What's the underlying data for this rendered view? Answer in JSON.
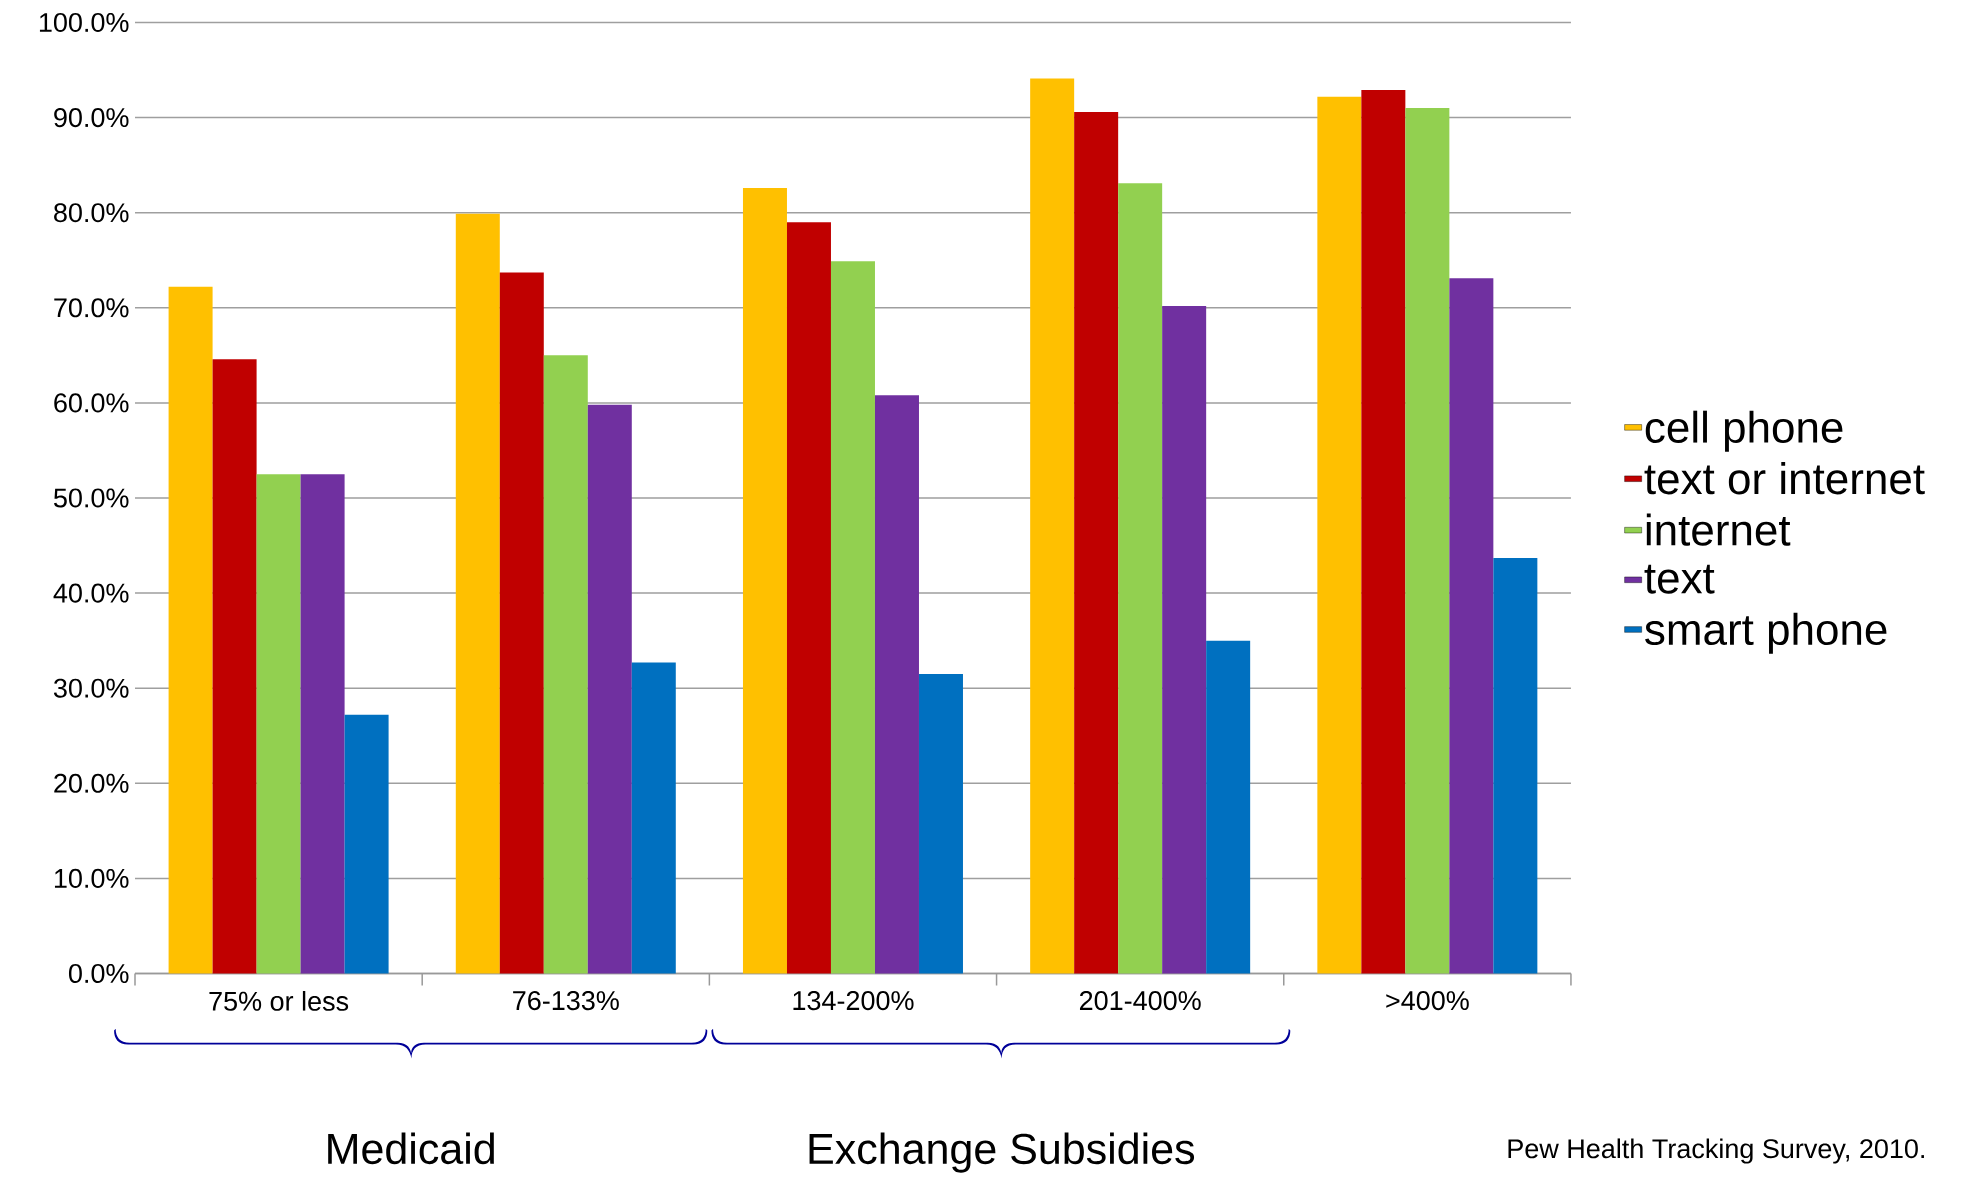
{
  "chart_data": {
    "type": "bar",
    "categories": [
      "75% or less",
      "76-133%",
      "134-200%",
      "201-400%",
      ">400%"
    ],
    "series": [
      {
        "name": "cell phone",
        "color": "#ffc000",
        "values": [
          72.2,
          79.9,
          82.6,
          94.1,
          92.2
        ]
      },
      {
        "name": "text or internet",
        "color": "#c00000",
        "values": [
          64.6,
          73.7,
          79.0,
          90.6,
          92.9
        ]
      },
      {
        "name": "internet",
        "color": "#92d050",
        "values": [
          52.5,
          65.0,
          74.9,
          83.1,
          91.0
        ]
      },
      {
        "name": "text",
        "color": "#7030a0",
        "values": [
          52.5,
          59.8,
          60.8,
          70.2,
          73.1
        ]
      },
      {
        "name": "smart phone",
        "color": "#0070c0",
        "values": [
          27.2,
          32.7,
          31.5,
          35.0,
          43.7
        ]
      }
    ],
    "ylim": [
      0,
      100
    ],
    "yticks": [
      {
        "value": 0,
        "label": "0.0%"
      },
      {
        "value": 10,
        "label": "10.0%"
      },
      {
        "value": 20,
        "label": "20.0%"
      },
      {
        "value": 30,
        "label": "30.0%"
      },
      {
        "value": 40,
        "label": "40.0%"
      },
      {
        "value": 50,
        "label": "50.0%"
      },
      {
        "value": 60,
        "label": "60.0%"
      },
      {
        "value": 70,
        "label": "70.0%"
      },
      {
        "value": 80,
        "label": "80.0%"
      },
      {
        "value": 90,
        "label": "90.0%"
      },
      {
        "value": 100,
        "label": "100.0%"
      }
    ],
    "grid": "y",
    "legend": "right",
    "annotations": [
      "Medicaid",
      "Exchange Subsidies",
      "Pew Health Tracking Survey, 2010."
    ]
  }
}
